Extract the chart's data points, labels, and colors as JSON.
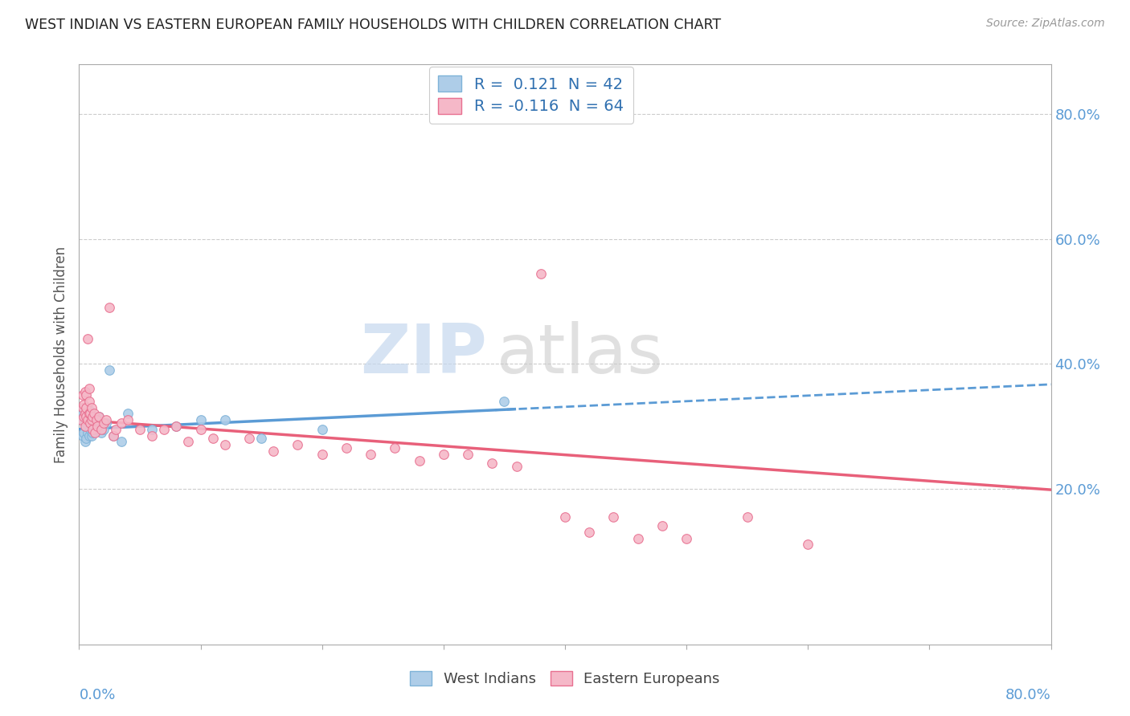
{
  "title": "WEST INDIAN VS EASTERN EUROPEAN FAMILY HOUSEHOLDS WITH CHILDREN CORRELATION CHART",
  "source": "Source: ZipAtlas.com",
  "ylabel": "Family Households with Children",
  "right_yticks": [
    "20.0%",
    "40.0%",
    "60.0%",
    "80.0%"
  ],
  "right_ytick_vals": [
    0.2,
    0.4,
    0.6,
    0.8
  ],
  "xlim": [
    0.0,
    0.8
  ],
  "ylim": [
    -0.05,
    0.88
  ],
  "west_indian_color": "#aecde8",
  "eastern_european_color": "#f5b8c8",
  "west_indian_edge_color": "#7fb3d8",
  "eastern_european_edge_color": "#e87090",
  "west_indian_line_color": "#5b9bd5",
  "eastern_european_line_color": "#e8607a",
  "legend_r1_val": "0.121",
  "legend_r1_n": "42",
  "legend_r2_val": "-0.116",
  "legend_r2_n": "64",
  "west_indian_x": [
    0.002,
    0.003,
    0.003,
    0.004,
    0.004,
    0.004,
    0.005,
    0.005,
    0.005,
    0.006,
    0.006,
    0.006,
    0.007,
    0.007,
    0.008,
    0.008,
    0.008,
    0.009,
    0.009,
    0.01,
    0.01,
    0.011,
    0.011,
    0.012,
    0.013,
    0.014,
    0.015,
    0.016,
    0.018,
    0.02,
    0.022,
    0.025,
    0.028,
    0.035,
    0.04,
    0.06,
    0.08,
    0.1,
    0.12,
    0.15,
    0.2,
    0.35
  ],
  "west_indian_y": [
    0.31,
    0.285,
    0.32,
    0.29,
    0.31,
    0.33,
    0.275,
    0.3,
    0.315,
    0.28,
    0.305,
    0.325,
    0.29,
    0.315,
    0.285,
    0.305,
    0.325,
    0.295,
    0.315,
    0.285,
    0.305,
    0.29,
    0.315,
    0.305,
    0.295,
    0.31,
    0.295,
    0.315,
    0.29,
    0.295,
    0.305,
    0.39,
    0.285,
    0.275,
    0.32,
    0.295,
    0.3,
    0.31,
    0.31,
    0.28,
    0.295,
    0.34
  ],
  "eastern_european_x": [
    0.002,
    0.003,
    0.003,
    0.004,
    0.004,
    0.005,
    0.005,
    0.005,
    0.006,
    0.006,
    0.006,
    0.007,
    0.007,
    0.008,
    0.008,
    0.008,
    0.009,
    0.009,
    0.01,
    0.01,
    0.011,
    0.011,
    0.012,
    0.013,
    0.014,
    0.015,
    0.016,
    0.018,
    0.02,
    0.022,
    0.025,
    0.028,
    0.03,
    0.035,
    0.04,
    0.05,
    0.06,
    0.07,
    0.08,
    0.09,
    0.1,
    0.11,
    0.12,
    0.14,
    0.16,
    0.18,
    0.2,
    0.22,
    0.24,
    0.26,
    0.28,
    0.3,
    0.32,
    0.34,
    0.36,
    0.38,
    0.4,
    0.42,
    0.44,
    0.46,
    0.48,
    0.5,
    0.55,
    0.6
  ],
  "eastern_european_y": [
    0.31,
    0.33,
    0.35,
    0.315,
    0.335,
    0.355,
    0.3,
    0.32,
    0.315,
    0.33,
    0.35,
    0.31,
    0.44,
    0.32,
    0.34,
    0.36,
    0.305,
    0.32,
    0.31,
    0.33,
    0.295,
    0.315,
    0.32,
    0.29,
    0.31,
    0.3,
    0.315,
    0.295,
    0.305,
    0.31,
    0.49,
    0.285,
    0.295,
    0.305,
    0.31,
    0.295,
    0.285,
    0.295,
    0.3,
    0.275,
    0.295,
    0.28,
    0.27,
    0.28,
    0.26,
    0.27,
    0.255,
    0.265,
    0.255,
    0.265,
    0.245,
    0.255,
    0.255,
    0.24,
    0.235,
    0.545,
    0.155,
    0.13,
    0.155,
    0.12,
    0.14,
    0.12,
    0.155,
    0.11
  ]
}
